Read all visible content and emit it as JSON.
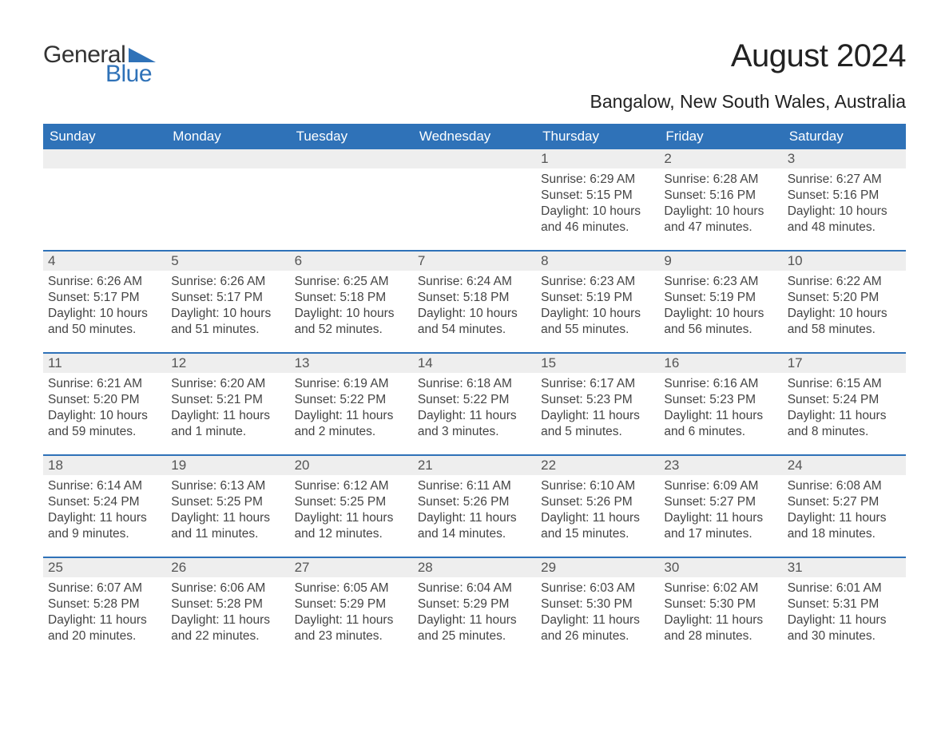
{
  "logo": {
    "general": "General",
    "blue": "Blue",
    "triangle_color": "#2f72b8"
  },
  "title": "August 2024",
  "location": "Bangalow, New South Wales, Australia",
  "styling": {
    "header_bg": "#2f72b8",
    "header_text": "#ffffff",
    "daynum_bg": "#eeeeee",
    "daynum_text": "#555555",
    "body_text": "#444444",
    "week_border": "#2f72b8",
    "page_bg": "#ffffff",
    "title_fontsize": 40,
    "location_fontsize": 23,
    "dow_fontsize": 17,
    "info_fontsize": 15.5
  },
  "days_of_week": [
    "Sunday",
    "Monday",
    "Tuesday",
    "Wednesday",
    "Thursday",
    "Friday",
    "Saturday"
  ],
  "weeks": [
    [
      {
        "day": "",
        "sunrise": "",
        "sunset": "",
        "daylight": ""
      },
      {
        "day": "",
        "sunrise": "",
        "sunset": "",
        "daylight": ""
      },
      {
        "day": "",
        "sunrise": "",
        "sunset": "",
        "daylight": ""
      },
      {
        "day": "",
        "sunrise": "",
        "sunset": "",
        "daylight": ""
      },
      {
        "day": "1",
        "sunrise": "Sunrise: 6:29 AM",
        "sunset": "Sunset: 5:15 PM",
        "daylight": "Daylight: 10 hours and 46 minutes."
      },
      {
        "day": "2",
        "sunrise": "Sunrise: 6:28 AM",
        "sunset": "Sunset: 5:16 PM",
        "daylight": "Daylight: 10 hours and 47 minutes."
      },
      {
        "day": "3",
        "sunrise": "Sunrise: 6:27 AM",
        "sunset": "Sunset: 5:16 PM",
        "daylight": "Daylight: 10 hours and 48 minutes."
      }
    ],
    [
      {
        "day": "4",
        "sunrise": "Sunrise: 6:26 AM",
        "sunset": "Sunset: 5:17 PM",
        "daylight": "Daylight: 10 hours and 50 minutes."
      },
      {
        "day": "5",
        "sunrise": "Sunrise: 6:26 AM",
        "sunset": "Sunset: 5:17 PM",
        "daylight": "Daylight: 10 hours and 51 minutes."
      },
      {
        "day": "6",
        "sunrise": "Sunrise: 6:25 AM",
        "sunset": "Sunset: 5:18 PM",
        "daylight": "Daylight: 10 hours and 52 minutes."
      },
      {
        "day": "7",
        "sunrise": "Sunrise: 6:24 AM",
        "sunset": "Sunset: 5:18 PM",
        "daylight": "Daylight: 10 hours and 54 minutes."
      },
      {
        "day": "8",
        "sunrise": "Sunrise: 6:23 AM",
        "sunset": "Sunset: 5:19 PM",
        "daylight": "Daylight: 10 hours and 55 minutes."
      },
      {
        "day": "9",
        "sunrise": "Sunrise: 6:23 AM",
        "sunset": "Sunset: 5:19 PM",
        "daylight": "Daylight: 10 hours and 56 minutes."
      },
      {
        "day": "10",
        "sunrise": "Sunrise: 6:22 AM",
        "sunset": "Sunset: 5:20 PM",
        "daylight": "Daylight: 10 hours and 58 minutes."
      }
    ],
    [
      {
        "day": "11",
        "sunrise": "Sunrise: 6:21 AM",
        "sunset": "Sunset: 5:20 PM",
        "daylight": "Daylight: 10 hours and 59 minutes."
      },
      {
        "day": "12",
        "sunrise": "Sunrise: 6:20 AM",
        "sunset": "Sunset: 5:21 PM",
        "daylight": "Daylight: 11 hours and 1 minute."
      },
      {
        "day": "13",
        "sunrise": "Sunrise: 6:19 AM",
        "sunset": "Sunset: 5:22 PM",
        "daylight": "Daylight: 11 hours and 2 minutes."
      },
      {
        "day": "14",
        "sunrise": "Sunrise: 6:18 AM",
        "sunset": "Sunset: 5:22 PM",
        "daylight": "Daylight: 11 hours and 3 minutes."
      },
      {
        "day": "15",
        "sunrise": "Sunrise: 6:17 AM",
        "sunset": "Sunset: 5:23 PM",
        "daylight": "Daylight: 11 hours and 5 minutes."
      },
      {
        "day": "16",
        "sunrise": "Sunrise: 6:16 AM",
        "sunset": "Sunset: 5:23 PM",
        "daylight": "Daylight: 11 hours and 6 minutes."
      },
      {
        "day": "17",
        "sunrise": "Sunrise: 6:15 AM",
        "sunset": "Sunset: 5:24 PM",
        "daylight": "Daylight: 11 hours and 8 minutes."
      }
    ],
    [
      {
        "day": "18",
        "sunrise": "Sunrise: 6:14 AM",
        "sunset": "Sunset: 5:24 PM",
        "daylight": "Daylight: 11 hours and 9 minutes."
      },
      {
        "day": "19",
        "sunrise": "Sunrise: 6:13 AM",
        "sunset": "Sunset: 5:25 PM",
        "daylight": "Daylight: 11 hours and 11 minutes."
      },
      {
        "day": "20",
        "sunrise": "Sunrise: 6:12 AM",
        "sunset": "Sunset: 5:25 PM",
        "daylight": "Daylight: 11 hours and 12 minutes."
      },
      {
        "day": "21",
        "sunrise": "Sunrise: 6:11 AM",
        "sunset": "Sunset: 5:26 PM",
        "daylight": "Daylight: 11 hours and 14 minutes."
      },
      {
        "day": "22",
        "sunrise": "Sunrise: 6:10 AM",
        "sunset": "Sunset: 5:26 PM",
        "daylight": "Daylight: 11 hours and 15 minutes."
      },
      {
        "day": "23",
        "sunrise": "Sunrise: 6:09 AM",
        "sunset": "Sunset: 5:27 PM",
        "daylight": "Daylight: 11 hours and 17 minutes."
      },
      {
        "day": "24",
        "sunrise": "Sunrise: 6:08 AM",
        "sunset": "Sunset: 5:27 PM",
        "daylight": "Daylight: 11 hours and 18 minutes."
      }
    ],
    [
      {
        "day": "25",
        "sunrise": "Sunrise: 6:07 AM",
        "sunset": "Sunset: 5:28 PM",
        "daylight": "Daylight: 11 hours and 20 minutes."
      },
      {
        "day": "26",
        "sunrise": "Sunrise: 6:06 AM",
        "sunset": "Sunset: 5:28 PM",
        "daylight": "Daylight: 11 hours and 22 minutes."
      },
      {
        "day": "27",
        "sunrise": "Sunrise: 6:05 AM",
        "sunset": "Sunset: 5:29 PM",
        "daylight": "Daylight: 11 hours and 23 minutes."
      },
      {
        "day": "28",
        "sunrise": "Sunrise: 6:04 AM",
        "sunset": "Sunset: 5:29 PM",
        "daylight": "Daylight: 11 hours and 25 minutes."
      },
      {
        "day": "29",
        "sunrise": "Sunrise: 6:03 AM",
        "sunset": "Sunset: 5:30 PM",
        "daylight": "Daylight: 11 hours and 26 minutes."
      },
      {
        "day": "30",
        "sunrise": "Sunrise: 6:02 AM",
        "sunset": "Sunset: 5:30 PM",
        "daylight": "Daylight: 11 hours and 28 minutes."
      },
      {
        "day": "31",
        "sunrise": "Sunrise: 6:01 AM",
        "sunset": "Sunset: 5:31 PM",
        "daylight": "Daylight: 11 hours and 30 minutes."
      }
    ]
  ]
}
